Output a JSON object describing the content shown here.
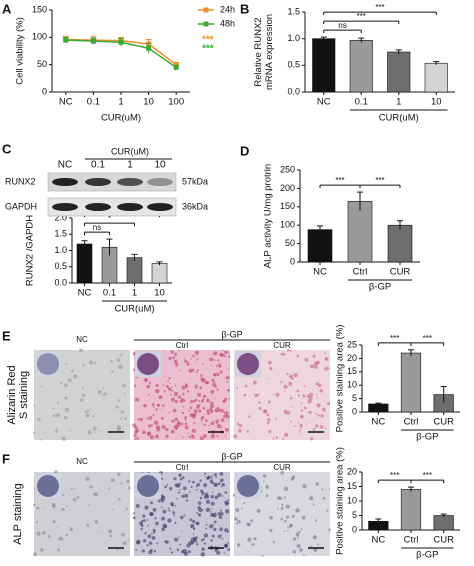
{
  "chart_data": [
    {
      "type": "line",
      "categories": [
        "NC",
        "0.1",
        "1",
        "10",
        "100"
      ],
      "xlabel": "CUR(uM)",
      "ylabel": "Cell viability (%)",
      "ylim": [
        0,
        150
      ],
      "yticks": [
        0,
        50,
        100,
        150
      ],
      "series": [
        {
          "name": "24h",
          "color": "#f0902a",
          "values": [
            96,
            95,
            94,
            88,
            50
          ],
          "errors": [
            6,
            7,
            6,
            8,
            4
          ]
        },
        {
          "name": "48h",
          "color": "#3aaa35",
          "values": [
            95,
            93,
            91,
            80,
            45
          ],
          "errors": [
            5,
            6,
            7,
            9,
            4
          ]
        }
      ],
      "annotations": [
        "***",
        "***"
      ]
    },
    {
      "type": "bar",
      "categories": [
        "NC",
        "0.1",
        "1",
        "10"
      ],
      "xlabel": "CUR(uM)",
      "ylabel": [
        "Relative RUNX2",
        "mRNA expression"
      ],
      "ylim": [
        0,
        1.5
      ],
      "yticks": [
        {
          "value": 0,
          "label": "0.0"
        },
        0.5,
        {
          "value": 1,
          "label": "1.0"
        },
        1.5
      ],
      "values": [
        1.0,
        0.97,
        0.75,
        0.54
      ],
      "errors": [
        0.03,
        0.04,
        0.04,
        0.03
      ],
      "colors": [
        "#111111",
        "#9a9a9a",
        "#6e6e6e",
        "#d4d4d4"
      ],
      "annotations": [
        "ns",
        "***",
        "***"
      ]
    },
    {
      "type": "bar",
      "categories": [
        "NC",
        "0.1",
        "1",
        "10"
      ],
      "xlabel": "CUR(uM)",
      "ylabel": [
        "RUNX2 /GAPDH"
      ],
      "ylim": [
        0,
        2.0
      ],
      "yticks": [
        {
          "value": 0,
          "label": "0.0"
        },
        0.5,
        {
          "value": 1,
          "label": "1.0"
        },
        1.5,
        {
          "value": 2,
          "label": "2.0"
        }
      ],
      "values": [
        1.2,
        1.1,
        0.78,
        0.6
      ],
      "errors": [
        0.1,
        0.25,
        0.1,
        0.05
      ],
      "colors": [
        "#111111",
        "#9a9a9a",
        "#6e6e6e",
        "#d4d4d4"
      ],
      "annotations": [
        "ns",
        "*",
        "***"
      ]
    },
    {
      "type": "bar",
      "categories": [
        "NC",
        "Ctrl",
        "CUR"
      ],
      "group_label": "β-GP",
      "ylabel": [
        "ALP activity U/mg protrin"
      ],
      "ylim": [
        0,
        250
      ],
      "yticks": [
        0,
        50,
        100,
        150,
        200,
        250
      ],
      "values": [
        88,
        165,
        100
      ],
      "errors": [
        10,
        25,
        12
      ],
      "colors": [
        "#111111",
        "#9a9a9a",
        "#6e6e6e"
      ],
      "annotations": [
        "***",
        "***"
      ]
    },
    {
      "type": "bar",
      "categories": [
        "NC",
        "Ctrl",
        "CUR"
      ],
      "group_label": "β-GP",
      "ylabel": [
        "Positive staining area (%)"
      ],
      "ylim": [
        0,
        25
      ],
      "yticks": [
        0,
        5,
        10,
        15,
        20,
        25
      ],
      "values": [
        3,
        22,
        6.5
      ],
      "errors": [
        0.3,
        1.2,
        3
      ],
      "colors": [
        "#111111",
        "#9a9a9a",
        "#6e6e6e"
      ],
      "annotations": [
        "***",
        "***"
      ]
    },
    {
      "type": "bar",
      "categories": [
        "NC",
        "Ctrl",
        "CUR"
      ],
      "group_label": "β-GP",
      "ylabel": [
        "Positive staining area (%)"
      ],
      "ylim": [
        0,
        20
      ],
      "yticks": [
        0,
        5,
        10,
        15,
        20
      ],
      "values": [
        3,
        14,
        5
      ],
      "errors": [
        0.8,
        0.8,
        0.5
      ],
      "colors": [
        "#111111",
        "#9a9a9a",
        "#6e6e6e"
      ],
      "annotations": [
        "***",
        "***"
      ]
    }
  ],
  "figure": {
    "panel_labels": [
      "A",
      "B",
      "C",
      "D",
      "E",
      "F"
    ],
    "blot": {
      "header": "CUR(uM)",
      "lanes": [
        "NC",
        "0.1",
        "1",
        "10"
      ],
      "rows": [
        "RUNX2",
        "GAPDH"
      ],
      "sizes": [
        "57kDa",
        "36kDa"
      ]
    },
    "staining": [
      {
        "row_label": [
          "Alizarin Red",
          "S staining"
        ],
        "group": "β-GP",
        "images": [
          "NC",
          "Ctrl",
          "CUR"
        ]
      },
      {
        "row_label": [
          "ALP staining"
        ],
        "group": "β-GP",
        "images": [
          "NC",
          "Ctrl",
          "CUR"
        ]
      }
    ]
  }
}
